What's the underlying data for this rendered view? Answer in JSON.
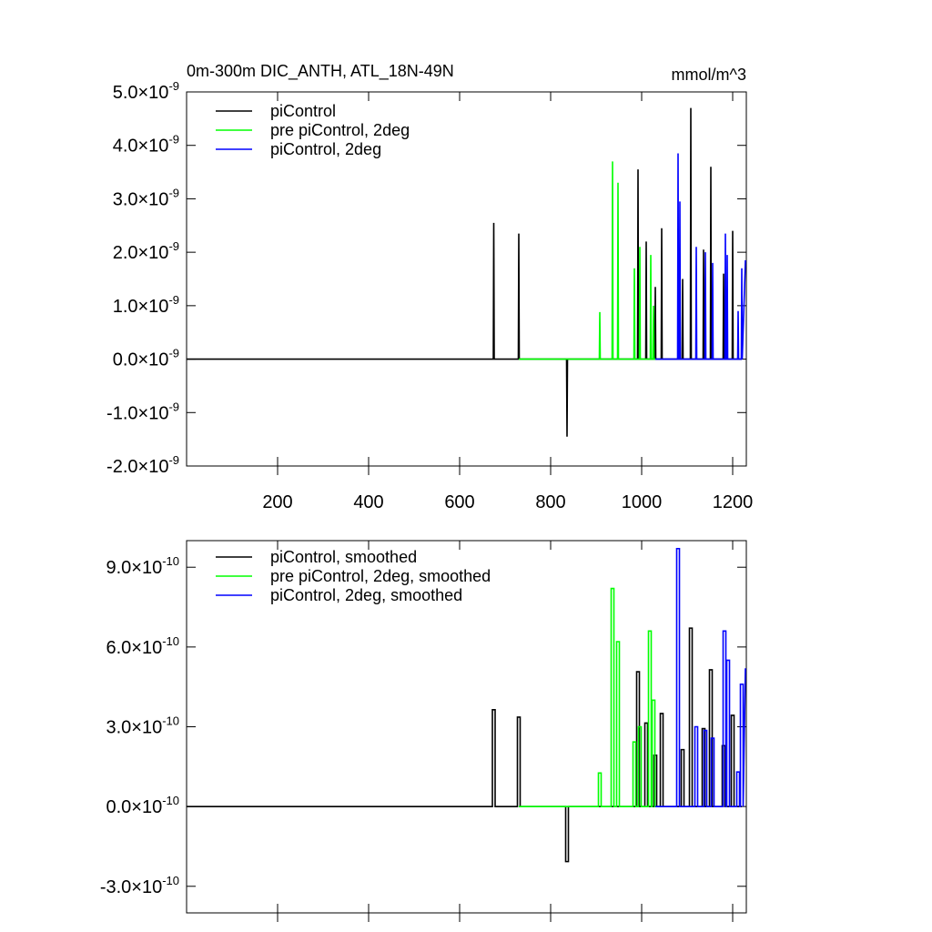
{
  "chart_data": [
    {
      "type": "line",
      "title": "0m-300m DIC_ANTH, ATL_18N-49N",
      "units": "mmol/m^3",
      "xlim": [
        0,
        1230
      ],
      "xticks": [
        200,
        400,
        600,
        800,
        1000,
        1200
      ],
      "xtick_labels": true,
      "ylim": [
        -2e-09,
        5e-09
      ],
      "yticks": [
        {
          "value": 5e-09,
          "label": "5.0×10",
          "exponent": "-9"
        },
        {
          "value": 4e-09,
          "label": "4.0×10",
          "exponent": "-9"
        },
        {
          "value": 3e-09,
          "label": "3.0×10",
          "exponent": "-9"
        },
        {
          "value": 2e-09,
          "label": "2.0×10",
          "exponent": "-9"
        },
        {
          "value": 1e-09,
          "label": "1.0×10",
          "exponent": "-9"
        },
        {
          "value": 0,
          "label": "0.0×10",
          "exponent": "-9"
        },
        {
          "value": -1e-09,
          "label": "-1.0×10",
          "exponent": "-9"
        },
        {
          "value": -2e-09,
          "label": "-2.0×10",
          "exponent": "-9"
        }
      ],
      "series": [
        {
          "name": "piControl",
          "color": "#000000",
          "x": [
            1,
            674,
            675,
            676,
            729,
            730,
            731,
            835,
            836,
            837,
            991,
            992,
            993,
            1009,
            1010,
            1011,
            1029,
            1030,
            1031,
            1043,
            1044,
            1045,
            1089,
            1090,
            1091,
            1107,
            1108,
            1109,
            1135,
            1136,
            1137,
            1151,
            1152,
            1153,
            1179,
            1180,
            1181,
            1199,
            1200,
            1201,
            1220
          ],
          "values": [
            0,
            0,
            2.55e-09,
            0,
            0,
            2.35e-09,
            0,
            0,
            -1.45e-09,
            0,
            0,
            3.55e-09,
            0,
            0,
            2.2e-09,
            0,
            0,
            1.35e-09,
            0,
            0,
            2.45e-09,
            0,
            0,
            1.5e-09,
            0,
            0,
            4.7e-09,
            0,
            0,
            2.05e-09,
            0,
            0,
            3.6e-09,
            0,
            0,
            1.6e-09,
            0,
            0,
            2.4e-09,
            0,
            0
          ]
        },
        {
          "name": "pre piControl, 2deg",
          "color": "#00ff00",
          "x": [
            730,
            907,
            908,
            909,
            935,
            936,
            937,
            947,
            948,
            949,
            983,
            984,
            985,
            995,
            996,
            997,
            1019,
            1020,
            1021,
            1025,
            1026,
            1027,
            1030
          ],
          "values": [
            0,
            0,
            8.8e-10,
            0,
            0,
            3.7e-09,
            0,
            0,
            3.3e-09,
            0,
            0,
            1.7e-09,
            0,
            0,
            2.1e-09,
            0,
            0,
            1.95e-09,
            0,
            0,
            1e-09,
            0,
            0
          ]
        },
        {
          "name": "piControl, 2deg",
          "color": "#0000ff",
          "x": [
            1030,
            1079,
            1080,
            1081,
            1083,
            1084,
            1085,
            1119,
            1120,
            1121,
            1139,
            1140,
            1141,
            1155,
            1156,
            1157,
            1183,
            1184,
            1185,
            1187,
            1188,
            1189,
            1211,
            1212,
            1213,
            1219,
            1220,
            1221,
            1228
          ],
          "values": [
            0,
            0,
            3.85e-09,
            0,
            0,
            2.95e-09,
            0,
            0,
            2.1e-09,
            0,
            0,
            2e-09,
            0,
            0,
            1.8e-09,
            0,
            0,
            2.35e-09,
            0,
            0,
            1.95e-09,
            0,
            0,
            9e-10,
            0,
            0,
            1.7e-09,
            0,
            1.85e-09
          ]
        }
      ]
    },
    {
      "type": "line",
      "xlim": [
        0,
        1230
      ],
      "xticks": [
        200,
        400,
        600,
        800,
        1000,
        1200
      ],
      "xtick_labels": false,
      "ylim": [
        -4e-10,
        1e-09
      ],
      "yticks": [
        {
          "value": 9e-10,
          "label": "9.0×10",
          "exponent": "-10"
        },
        {
          "value": 6e-10,
          "label": "6.0×10",
          "exponent": "-10"
        },
        {
          "value": 3e-10,
          "label": "3.0×10",
          "exponent": "-10"
        },
        {
          "value": 0,
          "label": "0.0×10",
          "exponent": "-10"
        },
        {
          "value": -3e-10,
          "label": "-3.0×10",
          "exponent": "-10"
        }
      ],
      "series": [
        {
          "name": "piControl, smoothed",
          "color": "#000000",
          "x": [
            1,
            672,
            672,
            678,
            678,
            727,
            727,
            733,
            733,
            833,
            833,
            839,
            839,
            989,
            989,
            995,
            995,
            1007,
            1007,
            1013,
            1013,
            1027,
            1027,
            1033,
            1033,
            1041,
            1041,
            1047,
            1047,
            1087,
            1087,
            1093,
            1093,
            1105,
            1105,
            1111,
            1111,
            1133,
            1133,
            1139,
            1139,
            1149,
            1149,
            1155,
            1155,
            1177,
            1177,
            1183,
            1183,
            1197,
            1197,
            1203,
            1203,
            1220
          ],
          "values": [
            0,
            0,
            3.64e-10,
            3.64e-10,
            0,
            0,
            3.36e-10,
            3.36e-10,
            0,
            0,
            -2.07e-10,
            -2.07e-10,
            0,
            0,
            5.07e-10,
            5.07e-10,
            0,
            0,
            3.14e-10,
            3.14e-10,
            0,
            0,
            1.93e-10,
            1.93e-10,
            0,
            0,
            3.5e-10,
            3.5e-10,
            0,
            0,
            2.14e-10,
            2.14e-10,
            0,
            0,
            6.71e-10,
            6.71e-10,
            0,
            0,
            2.93e-10,
            2.93e-10,
            0,
            0,
            5.14e-10,
            5.14e-10,
            0,
            0,
            2.29e-10,
            2.29e-10,
            0,
            0,
            3.43e-10,
            3.43e-10,
            0,
            0
          ]
        },
        {
          "name": "pre piControl, 2deg, smoothed",
          "color": "#00ff00",
          "x": [
            730,
            905,
            905,
            911,
            911,
            933,
            933,
            939,
            939,
            945,
            945,
            951,
            951,
            981,
            981,
            987,
            987,
            993,
            993,
            999,
            999,
            1015,
            1015,
            1021,
            1021,
            1023,
            1023,
            1029,
            1029,
            1030
          ],
          "values": [
            0,
            0,
            1.26e-10,
            1.26e-10,
            0,
            0,
            8.2e-10,
            8.2e-10,
            0,
            0,
            6.2e-10,
            6.2e-10,
            0,
            0,
            2.43e-10,
            2.43e-10,
            0,
            0,
            3e-10,
            3e-10,
            0,
            0,
            6.6e-10,
            6.6e-10,
            0,
            0,
            4e-10,
            4e-10,
            0,
            0
          ]
        },
        {
          "name": "piControl, 2deg, smoothed",
          "color": "#0000ff",
          "x": [
            1030,
            1077,
            1077,
            1083,
            1083,
            1117,
            1117,
            1123,
            1123,
            1137,
            1137,
            1143,
            1143,
            1153,
            1153,
            1159,
            1159,
            1179,
            1179,
            1185,
            1185,
            1187,
            1187,
            1193,
            1193,
            1209,
            1209,
            1215,
            1215,
            1217,
            1217,
            1223,
            1223,
            1228
          ],
          "values": [
            0,
            0,
            9.7e-10,
            9.7e-10,
            0,
            0,
            3e-10,
            3e-10,
            0,
            0,
            2.86e-10,
            2.86e-10,
            0,
            0,
            2.57e-10,
            2.57e-10,
            0,
            0,
            6.6e-10,
            6.6e-10,
            0,
            0,
            5.5e-10,
            5.5e-10,
            0,
            0,
            1.3e-10,
            1.3e-10,
            0,
            0,
            4.6e-10,
            4.6e-10,
            0,
            5.2e-10
          ]
        }
      ]
    }
  ]
}
